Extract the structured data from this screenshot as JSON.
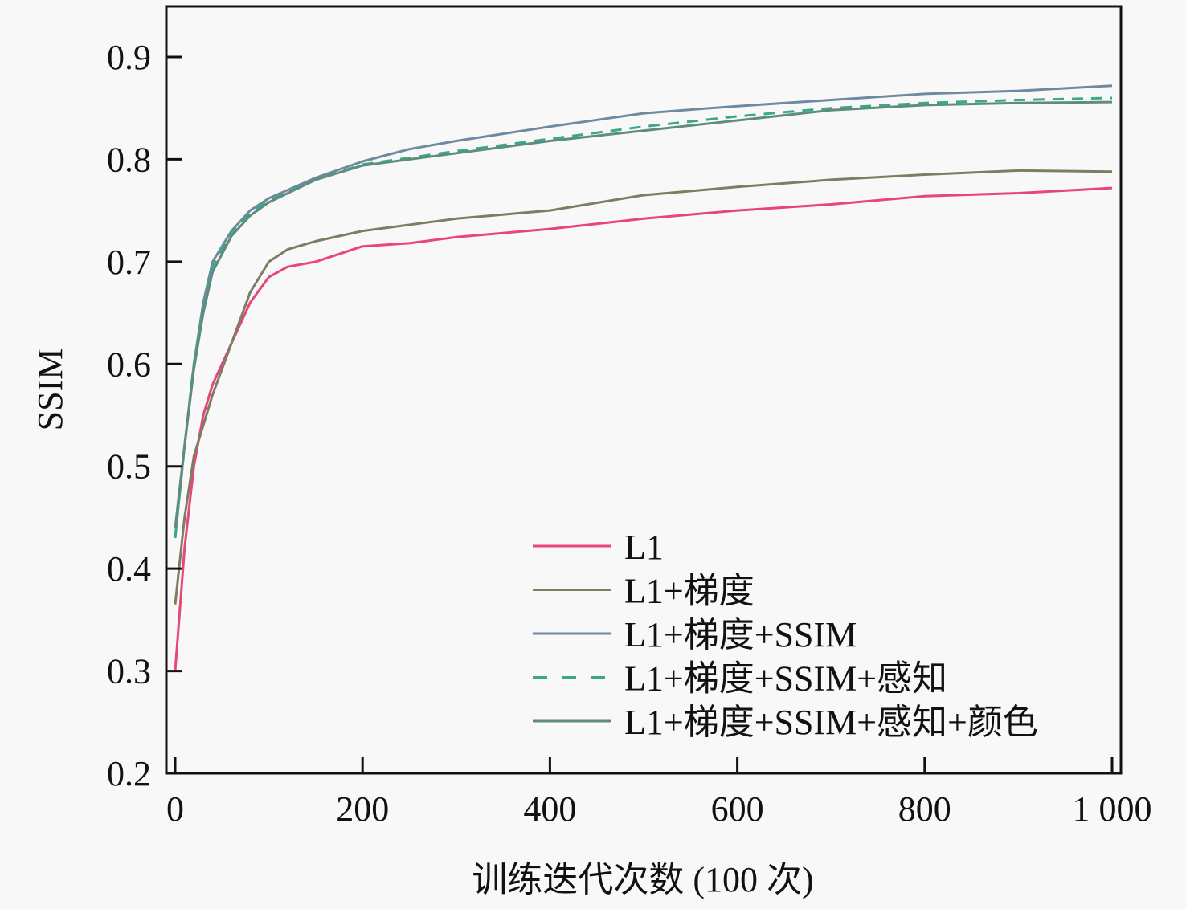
{
  "chart_data": {
    "type": "line",
    "title": "",
    "xlabel": "训练迭代次数 (100 次)",
    "ylabel": "SSIM",
    "xlim": [
      -5,
      1010
    ],
    "ylim": [
      0.2,
      0.95
    ],
    "xticks": [
      0,
      200,
      400,
      600,
      800,
      1000
    ],
    "xtick_labels": [
      "0",
      "200",
      "400",
      "600",
      "800",
      "1 000"
    ],
    "yticks": [
      0.2,
      0.3,
      0.4,
      0.5,
      0.6,
      0.7,
      0.8,
      0.9
    ],
    "ytick_labels": [
      "0.2",
      "0.3",
      "0.4",
      "0.5",
      "0.6",
      "0.7",
      "0.8",
      "0.9"
    ],
    "grid": false,
    "legend_position": "bottom-right",
    "series": [
      {
        "name": "L1",
        "color": "#e8457a",
        "dashed": false,
        "x": [
          0,
          10,
          20,
          30,
          40,
          60,
          80,
          100,
          120,
          150,
          200,
          250,
          300,
          400,
          500,
          600,
          700,
          800,
          900,
          1000
        ],
        "y": [
          0.3,
          0.42,
          0.5,
          0.55,
          0.58,
          0.62,
          0.66,
          0.685,
          0.695,
          0.7,
          0.715,
          0.718,
          0.724,
          0.732,
          0.742,
          0.75,
          0.756,
          0.764,
          0.767,
          0.772
        ]
      },
      {
        "name": "L1+梯度",
        "color": "#7d7d62",
        "dashed": false,
        "x": [
          0,
          10,
          20,
          40,
          60,
          80,
          100,
          120,
          150,
          200,
          300,
          400,
          500,
          600,
          700,
          800,
          900,
          1000
        ],
        "y": [
          0.365,
          0.45,
          0.51,
          0.57,
          0.62,
          0.67,
          0.7,
          0.712,
          0.72,
          0.73,
          0.742,
          0.75,
          0.765,
          0.773,
          0.78,
          0.785,
          0.789,
          0.788
        ]
      },
      {
        "name": "L1+梯度+SSIM",
        "color": "#6f8aa0",
        "dashed": false,
        "x": [
          0,
          10,
          20,
          30,
          40,
          60,
          80,
          100,
          150,
          200,
          250,
          300,
          400,
          500,
          600,
          700,
          800,
          900,
          1000
        ],
        "y": [
          0.43,
          0.52,
          0.6,
          0.66,
          0.7,
          0.73,
          0.75,
          0.762,
          0.782,
          0.798,
          0.81,
          0.818,
          0.832,
          0.845,
          0.852,
          0.858,
          0.864,
          0.867,
          0.872
        ]
      },
      {
        "name": "L1+梯度+SSIM+感知",
        "color": "#3aa88a",
        "dashed": true,
        "x": [
          0,
          10,
          20,
          30,
          40,
          60,
          80,
          100,
          150,
          200,
          300,
          400,
          500,
          600,
          700,
          800,
          900,
          1000
        ],
        "y": [
          0.43,
          0.52,
          0.6,
          0.655,
          0.695,
          0.728,
          0.748,
          0.76,
          0.78,
          0.795,
          0.808,
          0.82,
          0.832,
          0.842,
          0.85,
          0.855,
          0.858,
          0.86
        ]
      },
      {
        "name": "L1+梯度+SSIM+感知+颜色",
        "color": "#5f8c7c",
        "dashed": false,
        "x": [
          0,
          10,
          20,
          30,
          40,
          60,
          80,
          100,
          150,
          200,
          300,
          400,
          500,
          600,
          700,
          800,
          900,
          1000
        ],
        "y": [
          0.44,
          0.52,
          0.595,
          0.65,
          0.69,
          0.725,
          0.745,
          0.758,
          0.78,
          0.794,
          0.806,
          0.818,
          0.828,
          0.838,
          0.848,
          0.853,
          0.855,
          0.856
        ]
      }
    ]
  }
}
